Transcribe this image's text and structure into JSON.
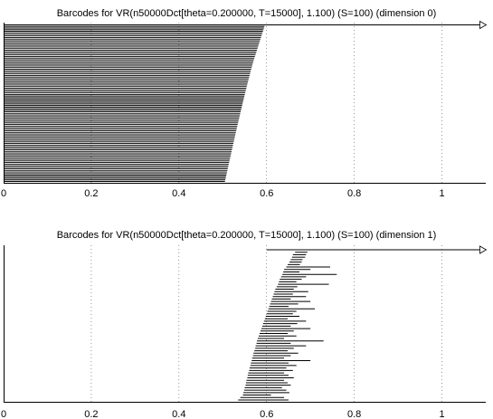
{
  "chart_data": [
    {
      "type": "barcode",
      "title": "Barcodes for VR(n50000Dct[theta=0.200000, T=15000], 1.100) (S=100) (dimension 0)",
      "xlabel": "",
      "ylabel": "",
      "xlim": [
        0,
        1.1
      ],
      "xticks": [
        0,
        0.2,
        0.4,
        0.6,
        0.8,
        1
      ],
      "xtick_labels": [
        "0",
        "0.2",
        "0.4",
        "0.6",
        "0.8",
        "1"
      ],
      "grid": "vertical dotted",
      "infinite_bars": [
        {
          "start": 0,
          "from_bar_start": 0.595
        }
      ],
      "bars_sorted_by": "death descending",
      "bar_count": 99,
      "death_max": 0.595,
      "death_min": 0.505,
      "death_knee": 0.575
    },
    {
      "type": "barcode",
      "title": "Barcodes for VR(n50000Dct[theta=0.200000, T=15000], 1.100) (S=100) (dimension 1)",
      "xlabel": "",
      "ylabel": "",
      "xlim": [
        0,
        1.1
      ],
      "xticks": [
        0,
        0.2,
        0.4,
        0.6,
        0.8,
        1
      ],
      "xtick_labels": [
        "0",
        "0.2",
        "0.4",
        "0.6",
        "0.8",
        "1"
      ],
      "grid": "vertical dotted",
      "infinite_bars": [
        {
          "start": 0.6
        }
      ],
      "intervals": [
        [
          0.665,
          0.693
        ],
        [
          0.66,
          0.69
        ],
        [
          0.658,
          0.688
        ],
        [
          0.655,
          0.682
        ],
        [
          0.652,
          0.68
        ],
        [
          0.648,
          0.676
        ],
        [
          0.645,
          0.745
        ],
        [
          0.64,
          0.7
        ],
        [
          0.638,
          0.675
        ],
        [
          0.636,
          0.76
        ],
        [
          0.633,
          0.69
        ],
        [
          0.63,
          0.68
        ],
        [
          0.628,
          0.668
        ],
        [
          0.626,
          0.742
        ],
        [
          0.623,
          0.67
        ],
        [
          0.62,
          0.662
        ],
        [
          0.618,
          0.695
        ],
        [
          0.616,
          0.66
        ],
        [
          0.614,
          0.69
        ],
        [
          0.612,
          0.655
        ],
        [
          0.61,
          0.7
        ],
        [
          0.608,
          0.672
        ],
        [
          0.606,
          0.65
        ],
        [
          0.604,
          0.71
        ],
        [
          0.602,
          0.668
        ],
        [
          0.6,
          0.66
        ],
        [
          0.598,
          0.675
        ],
        [
          0.596,
          0.648
        ],
        [
          0.594,
          0.69
        ],
        [
          0.592,
          0.67
        ],
        [
          0.59,
          0.655
        ],
        [
          0.588,
          0.7
        ],
        [
          0.586,
          0.662
        ],
        [
          0.584,
          0.648
        ],
        [
          0.582,
          0.668
        ],
        [
          0.58,
          0.64
        ],
        [
          0.578,
          0.73
        ],
        [
          0.577,
          0.655
        ],
        [
          0.575,
          0.69
        ],
        [
          0.574,
          0.662
        ],
        [
          0.572,
          0.648
        ],
        [
          0.57,
          0.672
        ],
        [
          0.569,
          0.655
        ],
        [
          0.567,
          0.64
        ],
        [
          0.566,
          0.7
        ],
        [
          0.564,
          0.65
        ],
        [
          0.563,
          0.668
        ],
        [
          0.561,
          0.645
        ],
        [
          0.56,
          0.66
        ],
        [
          0.558,
          0.64
        ],
        [
          0.557,
          0.65
        ],
        [
          0.556,
          0.662
        ],
        [
          0.554,
          0.64
        ],
        [
          0.553,
          0.648
        ],
        [
          0.552,
          0.655
        ],
        [
          0.55,
          0.635
        ],
        [
          0.549,
          0.645
        ],
        [
          0.547,
          0.652
        ],
        [
          0.546,
          0.61
        ],
        [
          0.54,
          0.64
        ],
        [
          0.535,
          0.65
        ]
      ]
    }
  ]
}
